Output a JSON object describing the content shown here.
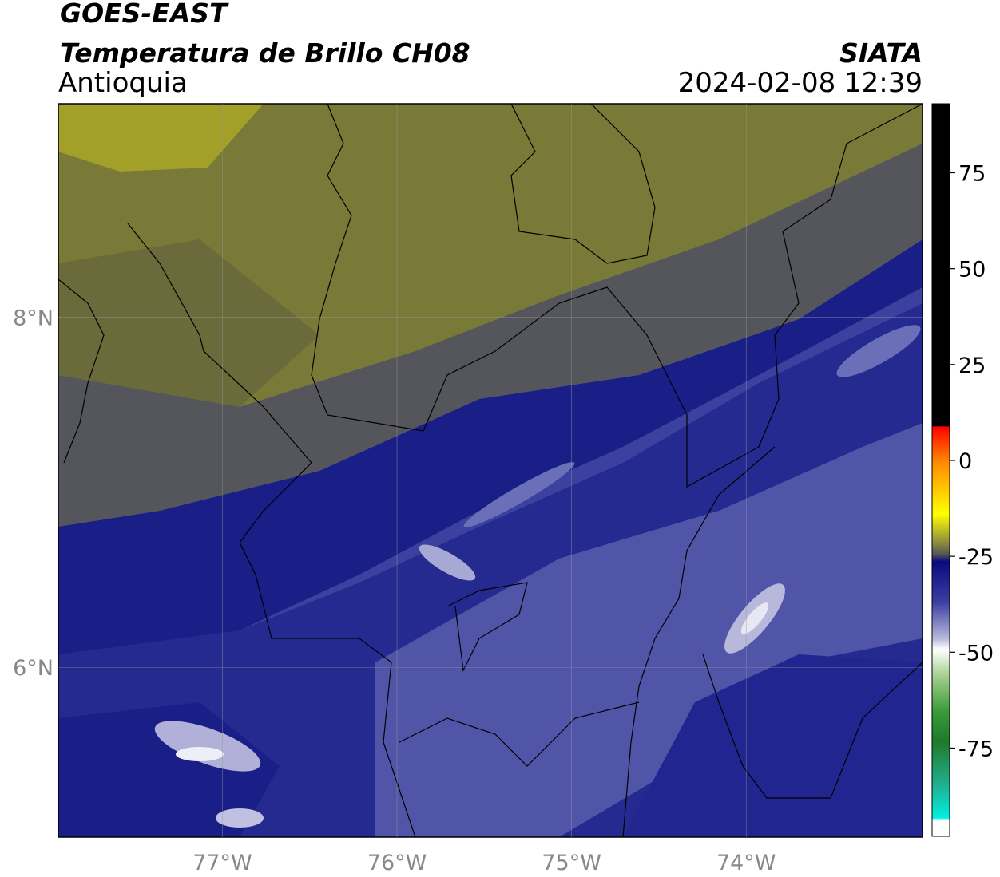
{
  "header": {
    "title": "GOES-EAST",
    "subtitle": "Temperatura de Brillo CH08",
    "region": "Antioquia",
    "source": "SIATA",
    "datetime": "2024-02-08 12:39"
  },
  "map": {
    "xlim": [
      -77.94,
      -72.99
    ],
    "ylim": [
      5.03,
      9.22
    ],
    "xticks": [
      {
        "value": -77,
        "label": "77°W"
      },
      {
        "value": -76,
        "label": "76°W"
      },
      {
        "value": -75,
        "label": "75°W"
      },
      {
        "value": -74,
        "label": "74°W"
      }
    ],
    "yticks": [
      {
        "value": 6,
        "label": "6°N"
      },
      {
        "value": 8,
        "label": "8°N"
      }
    ]
  },
  "colorbar": {
    "lim": [
      -98,
      93
    ],
    "ticks": [
      -75,
      -50,
      -25,
      0,
      25,
      50,
      75
    ]
  }
}
